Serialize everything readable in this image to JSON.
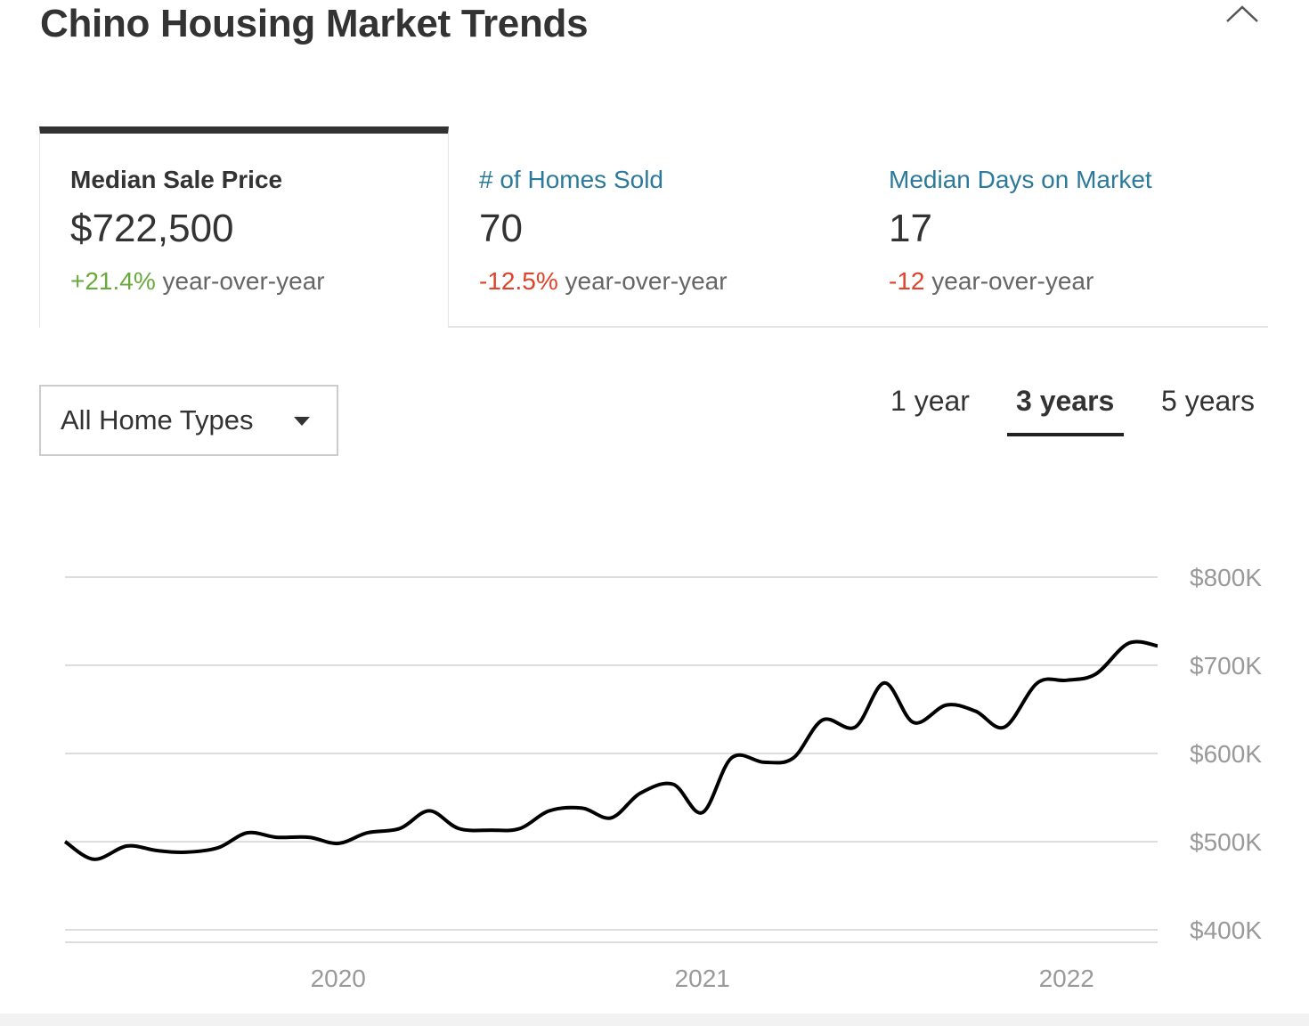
{
  "title": "Chino Housing Market Trends",
  "metrics": [
    {
      "label": "Median Sale Price",
      "value": "$722,500",
      "change": "+21.4%",
      "change_suffix": "year-over-year",
      "change_direction": "up",
      "active": true
    },
    {
      "label": "# of Homes Sold",
      "value": "70",
      "change": "-12.5%",
      "change_suffix": "year-over-year",
      "change_direction": "down",
      "active": false
    },
    {
      "label": "Median Days on Market",
      "value": "17",
      "change": "-12",
      "change_suffix": "year-over-year",
      "change_direction": "down",
      "active": false
    }
  ],
  "filters": {
    "home_type": "All Home Types"
  },
  "time_ranges": [
    {
      "label": "1 year",
      "active": false
    },
    {
      "label": "3 years",
      "active": true
    },
    {
      "label": "5 years",
      "active": false
    }
  ],
  "colors": {
    "positive": "#6aaa3c",
    "negative": "#e0422a",
    "link": "#2c7a9b",
    "line": "#000000",
    "grid": "#dddddd",
    "axis_text": "#999999"
  },
  "icons": {
    "collapse": "chevron-up-icon",
    "dropdown": "caret-down-icon"
  },
  "chart_data": {
    "type": "line",
    "title": "",
    "xlabel": "",
    "ylabel": "",
    "x_tick_labels": [
      "2020",
      "2021",
      "2022"
    ],
    "x_tick_values": [
      2020.0,
      2021.0,
      2022.0
    ],
    "y_tick_labels": [
      "$400K",
      "$500K",
      "$600K",
      "$700K",
      "$800K"
    ],
    "y_tick_values": [
      400,
      500,
      600,
      700,
      800
    ],
    "ylim": [
      400,
      800
    ],
    "xlim": [
      2019.25,
      2022.25
    ],
    "y_unit": "thousands USD",
    "grid": true,
    "series": [
      {
        "x": [
          2019.25,
          2019.33,
          2019.42,
          2019.5,
          2019.58,
          2019.67,
          2019.75,
          2019.83,
          2019.92,
          2020.0,
          2020.08,
          2020.17,
          2020.25,
          2020.33,
          2020.42,
          2020.5,
          2020.58,
          2020.67,
          2020.75,
          2020.83,
          2020.92,
          2021.0,
          2021.08,
          2021.17,
          2021.25,
          2021.33,
          2021.42,
          2021.5,
          2021.58,
          2021.67,
          2021.75,
          2021.83,
          2021.92,
          2022.0,
          2022.08,
          2022.17,
          2022.25
        ],
        "values": [
          500,
          480,
          495,
          490,
          488,
          493,
          510,
          505,
          505,
          498,
          510,
          515,
          535,
          515,
          513,
          515,
          535,
          538,
          527,
          555,
          565,
          533,
          595,
          590,
          595,
          638,
          630,
          680,
          635,
          655,
          648,
          630,
          680,
          683,
          690,
          725,
          722
        ]
      }
    ]
  }
}
